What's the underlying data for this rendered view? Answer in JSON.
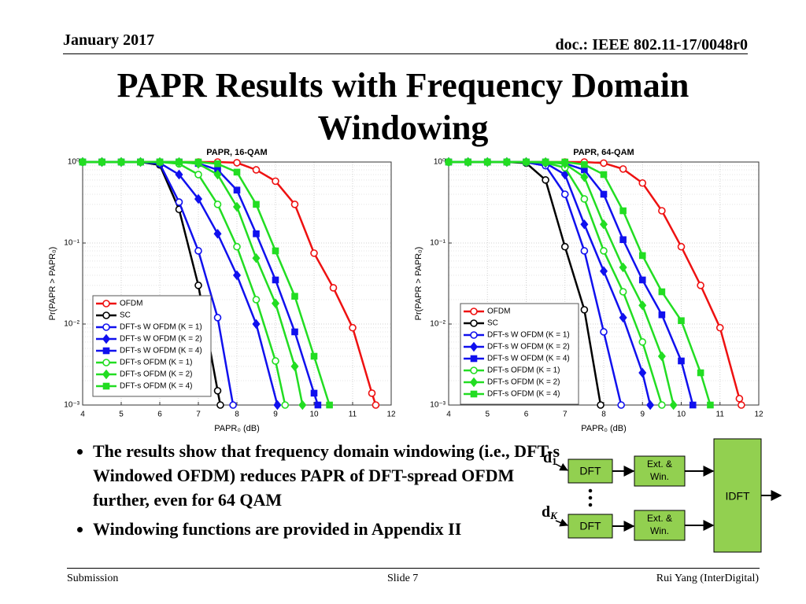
{
  "header": {
    "date": "January 2017",
    "doc": "doc.: IEEE 802.11-17/0048r0"
  },
  "title": "PAPR Results with Frequency Domain Windowing",
  "chart_data": [
    {
      "type": "line",
      "title": "PAPR, 16-QAM",
      "x_label": "PAPR₀ (dB)",
      "y_label": "Pr(PAPR > PAPR₀)",
      "xlim": [
        4,
        12
      ],
      "xticks": [
        4,
        5,
        6,
        7,
        8,
        9,
        10,
        11,
        12
      ],
      "ylim": [
        0.001,
        1
      ],
      "ylog": true,
      "yticks": [
        {
          "value": 1,
          "label": "10⁰"
        },
        {
          "value": 0.1,
          "label": "10⁻¹"
        },
        {
          "value": 0.01,
          "label": "10⁻²"
        },
        {
          "value": 0.001,
          "label": "10⁻³"
        }
      ],
      "grid": true,
      "legend": "lower left",
      "series": [
        {
          "name": "OFDM",
          "color": "#ee1111",
          "marker": "circle",
          "x": [
            4,
            4.5,
            5,
            5.5,
            6,
            6.5,
            7,
            7.5,
            8,
            8.5,
            9,
            9.5,
            10,
            10.5,
            11,
            11.5,
            11.6
          ],
          "values": [
            1,
            1,
            1,
            1,
            1,
            1,
            1,
            1,
            0.98,
            0.8,
            0.58,
            0.3,
            0.075,
            0.028,
            0.009,
            0.0014,
            0.001
          ]
        },
        {
          "name": "SC",
          "color": "#000000",
          "marker": "circle",
          "x": [
            4,
            4.5,
            5,
            5.5,
            6,
            6.5,
            7,
            7.5,
            7.57
          ],
          "values": [
            1,
            1,
            1,
            1,
            0.92,
            0.26,
            0.03,
            0.0015,
            0.001
          ]
        },
        {
          "name": "DFT-s W OFDM (K = 1)",
          "color": "#1010ee",
          "marker": "circle",
          "x": [
            4,
            4.5,
            5,
            5.5,
            6,
            6.5,
            7,
            7.5,
            7.9
          ],
          "values": [
            1,
            1,
            1,
            1,
            0.95,
            0.32,
            0.08,
            0.012,
            0.001
          ]
        },
        {
          "name": "DFT-s W OFDM (K = 2)",
          "color": "#1010ee",
          "marker": "diamond",
          "x": [
            4,
            4.5,
            5,
            5.5,
            6,
            6.5,
            7,
            7.5,
            8,
            8.5,
            9.05
          ],
          "values": [
            1,
            1,
            1,
            1,
            0.97,
            0.7,
            0.35,
            0.13,
            0.04,
            0.01,
            0.001
          ]
        },
        {
          "name": "DFT-s W OFDM (K = 4)",
          "color": "#1010ee",
          "marker": "square",
          "x": [
            4,
            4.5,
            5,
            5.5,
            6,
            6.5,
            7,
            7.5,
            8,
            8.5,
            9,
            9.5,
            10,
            10.1
          ],
          "values": [
            1,
            1,
            1,
            1,
            1,
            1,
            0.96,
            0.8,
            0.45,
            0.13,
            0.035,
            0.008,
            0.0014,
            0.001
          ]
        },
        {
          "name": "DFT-s OFDM (K = 1)",
          "color": "#22dd22",
          "marker": "circle",
          "x": [
            4,
            4.5,
            5,
            5.5,
            6,
            6.5,
            7,
            7.5,
            8,
            8.5,
            9,
            9.25
          ],
          "values": [
            1,
            1,
            1,
            1,
            1,
            0.95,
            0.7,
            0.3,
            0.09,
            0.02,
            0.0035,
            0.001
          ]
        },
        {
          "name": "DFT-s OFDM (K = 2)",
          "color": "#22dd22",
          "marker": "diamond",
          "x": [
            4,
            4.5,
            5,
            5.5,
            6,
            6.5,
            7,
            7.5,
            8,
            8.5,
            9,
            9.5,
            9.7
          ],
          "values": [
            1,
            1,
            1,
            1,
            1,
            1,
            0.95,
            0.7,
            0.28,
            0.065,
            0.018,
            0.003,
            0.001
          ]
        },
        {
          "name": "DFT-s OFDM (K = 4)",
          "color": "#22dd22",
          "marker": "square",
          "x": [
            4,
            4.5,
            5,
            5.5,
            6,
            6.5,
            7,
            7.5,
            8,
            8.5,
            9,
            9.5,
            10,
            10.4
          ],
          "values": [
            1,
            1,
            1,
            1,
            1,
            1,
            1,
            0.95,
            0.75,
            0.3,
            0.08,
            0.022,
            0.004,
            0.001
          ]
        }
      ]
    },
    {
      "type": "line",
      "title": "PAPR, 64-QAM",
      "x_label": "PAPR₀ (dB)",
      "y_label": "Pr(PAPR > PAPR₀)",
      "xlim": [
        4,
        12
      ],
      "xticks": [
        4,
        5,
        6,
        7,
        8,
        9,
        10,
        11,
        12
      ],
      "ylim": [
        0.001,
        1
      ],
      "ylog": true,
      "yticks": [
        {
          "value": 1,
          "label": "10⁰"
        },
        {
          "value": 0.1,
          "label": "10⁻¹"
        },
        {
          "value": 0.01,
          "label": "10⁻²"
        },
        {
          "value": 0.001,
          "label": "10⁻³"
        }
      ],
      "grid": true,
      "legend": "lower left",
      "series": [
        {
          "name": "OFDM",
          "color": "#ee1111",
          "marker": "circle",
          "x": [
            4,
            4.5,
            5,
            5.5,
            6,
            6.5,
            7,
            7.5,
            8,
            8.5,
            9,
            9.5,
            10,
            10.5,
            11,
            11.5,
            11.55
          ],
          "values": [
            1,
            1,
            1,
            1,
            1,
            1,
            1,
            1,
            0.97,
            0.82,
            0.55,
            0.25,
            0.09,
            0.03,
            0.009,
            0.0012,
            0.001
          ]
        },
        {
          "name": "SC",
          "color": "#000000",
          "marker": "circle",
          "x": [
            4,
            4.5,
            5,
            5.5,
            6,
            6.5,
            7,
            7.5,
            7.92
          ],
          "values": [
            1,
            1,
            1,
            1,
            0.97,
            0.6,
            0.09,
            0.015,
            0.001
          ]
        },
        {
          "name": "DFT-s W OFDM (K = 1)",
          "color": "#1010ee",
          "marker": "circle",
          "x": [
            4,
            4.5,
            5,
            5.5,
            6,
            6.5,
            7,
            7.5,
            8,
            8.45
          ],
          "values": [
            1,
            1,
            1,
            1,
            0.99,
            0.9,
            0.4,
            0.08,
            0.008,
            0.001
          ]
        },
        {
          "name": "DFT-s W OFDM (K = 2)",
          "color": "#1010ee",
          "marker": "diamond",
          "x": [
            4,
            4.5,
            5,
            5.5,
            6,
            6.5,
            7,
            7.5,
            8,
            8.5,
            9,
            9.2
          ],
          "values": [
            1,
            1,
            1,
            1,
            1,
            0.97,
            0.7,
            0.17,
            0.045,
            0.012,
            0.0025,
            0.001
          ]
        },
        {
          "name": "DFT-s W OFDM (K = 4)",
          "color": "#1010ee",
          "marker": "square",
          "x": [
            4,
            4.5,
            5,
            5.5,
            6,
            6.5,
            7,
            7.5,
            8,
            8.5,
            9,
            9.5,
            10,
            10.3
          ],
          "values": [
            1,
            1,
            1,
            1,
            1,
            1,
            0.96,
            0.8,
            0.4,
            0.11,
            0.035,
            0.013,
            0.0035,
            0.001
          ]
        },
        {
          "name": "DFT-s OFDM (K = 1)",
          "color": "#22dd22",
          "marker": "circle",
          "x": [
            4,
            4.5,
            5,
            5.5,
            6,
            6.5,
            7,
            7.5,
            8,
            8.5,
            9,
            9.5
          ],
          "values": [
            1,
            1,
            1,
            1,
            1,
            0.98,
            0.85,
            0.35,
            0.08,
            0.025,
            0.006,
            0.001
          ]
        },
        {
          "name": "DFT-s OFDM (K = 2)",
          "color": "#22dd22",
          "marker": "diamond",
          "x": [
            4,
            4.5,
            5,
            5.5,
            6,
            6.5,
            7,
            7.5,
            8,
            8.5,
            9,
            9.5,
            9.8
          ],
          "values": [
            1,
            1,
            1,
            1,
            1,
            1,
            0.95,
            0.65,
            0.17,
            0.05,
            0.017,
            0.004,
            0.001
          ]
        },
        {
          "name": "DFT-s OFDM (K = 4)",
          "color": "#22dd22",
          "marker": "square",
          "x": [
            4,
            4.5,
            5,
            5.5,
            6,
            6.5,
            7,
            7.5,
            8,
            8.5,
            9,
            9.5,
            10,
            10.5,
            10.75
          ],
          "values": [
            1,
            1,
            1,
            1,
            1,
            1,
            1,
            0.93,
            0.7,
            0.25,
            0.07,
            0.025,
            0.011,
            0.0025,
            0.001
          ]
        }
      ]
    }
  ],
  "bullets": [
    "The results show that frequency domain windowing (i.e., DFT-s Windowed OFDM) reduces PAPR of DFT-spread OFDM further, even for 64 QAM",
    "Windowing functions are provided in Appendix II"
  ],
  "diagram": {
    "inputs": [
      {
        "label": "d",
        "sub": "1"
      },
      {
        "label": "d",
        "sub": "K"
      }
    ],
    "dft": [
      "DFT",
      "DFT"
    ],
    "window": [
      [
        "Ext. &",
        "Win."
      ],
      [
        "Ext. &",
        "Win."
      ]
    ],
    "idft": "IDFT"
  },
  "footer": {
    "left": "Submission",
    "center": "Slide 7",
    "right": "Rui Yang (InterDigital)"
  }
}
